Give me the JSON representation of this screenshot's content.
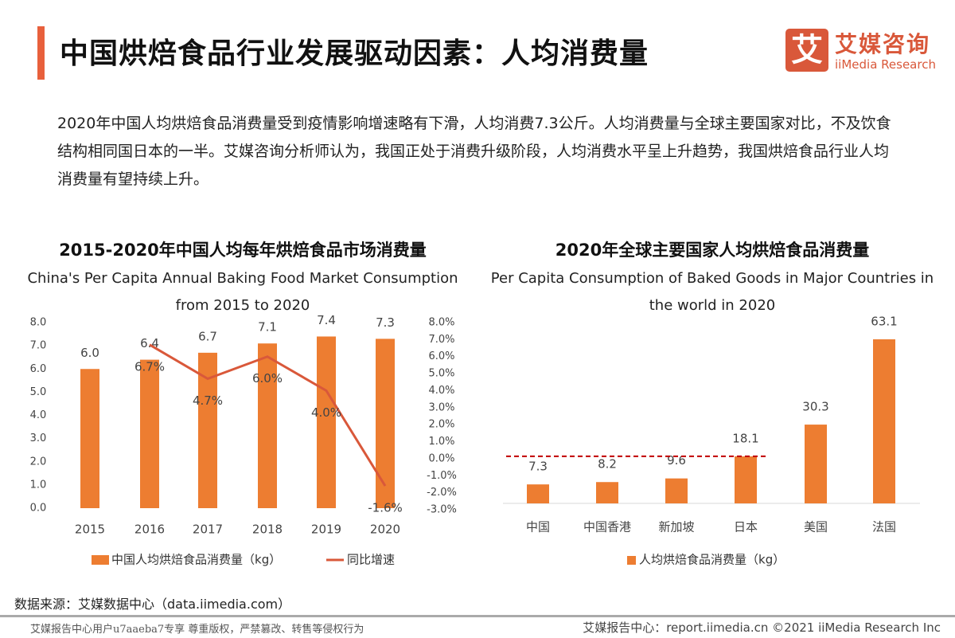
{
  "header": {
    "title": "中国烘焙食品行业发展驱动因素：人均消费量",
    "logo_icon": "艾",
    "logo_cn": "艾媒咨询",
    "logo_en": "iiMedia Research"
  },
  "summary": "2020年中国人均烘焙食品消费量受到疫情影响增速略有下滑，人均消费7.3公斤。人均消费量与全球主要国家对比，不及饮食结构相同国日本的一半。艾媒咨询分析师认为，我国正处于消费升级阶段，人均消费水平呈上升趋势，我国烘焙食品行业人均消费量有望持续上升。",
  "chart_data": [
    {
      "type": "bar+line",
      "title": "2015-2020年中国人均每年烘焙食品市场消费量",
      "subtitle": "China's Per Capita Annual Baking Food Market Consumption from 2015 to 2020",
      "categories": [
        "2015",
        "2016",
        "2017",
        "2018",
        "2019",
        "2020"
      ],
      "series": [
        {
          "name": "中国人均烘焙食品消费量（kg）",
          "type": "bar",
          "axis": "left",
          "values": [
            6.0,
            6.4,
            6.7,
            7.1,
            7.4,
            7.3
          ],
          "labels": [
            "6.0",
            "6.4",
            "6.7",
            "7.1",
            "7.4",
            "7.3"
          ],
          "color": "#ed7d31"
        },
        {
          "name": "同比增速",
          "type": "line",
          "axis": "right",
          "values": [
            null,
            6.7,
            4.7,
            6.0,
            4.0,
            -1.6
          ],
          "labels": [
            "",
            "6.7%",
            "4.7%",
            "6.0%",
            "4.0%",
            "-1.6%"
          ],
          "color": "#d9583a"
        }
      ],
      "ylim_left": [
        0,
        8
      ],
      "yticks_left": [
        "0.0",
        "1.0",
        "2.0",
        "3.0",
        "4.0",
        "5.0",
        "6.0",
        "7.0",
        "8.0"
      ],
      "ylim_right": [
        -3,
        8
      ],
      "yticks_right": [
        "-3.0%",
        "-2.0%",
        "-1.0%",
        "0.0%",
        "1.0%",
        "2.0%",
        "3.0%",
        "4.0%",
        "5.0%",
        "6.0%",
        "7.0%",
        "8.0%"
      ],
      "legend": "bottom",
      "grid": false
    },
    {
      "type": "bar",
      "title": "2020年全球主要国家人均烘焙食品消费量",
      "subtitle": "Per Capita Consumption of Baked Goods in Major Countries in the world in 2020",
      "categories": [
        "中国",
        "中国香港",
        "新加坡",
        "日本",
        "美国",
        "法国"
      ],
      "series": [
        {
          "name": "人均烘焙食品消费量（kg）",
          "values": [
            7.3,
            8.2,
            9.6,
            18.1,
            30.3,
            63.1
          ],
          "labels": [
            "7.3",
            "8.2",
            "9.6",
            "18.1",
            "30.3",
            "63.1"
          ],
          "color": "#ed7d31"
        }
      ],
      "reference_line": {
        "value": 18.1,
        "style": "dashed",
        "color": "#c00000"
      },
      "legend": "bottom",
      "grid": false
    }
  ],
  "footer": {
    "source": "数据来源：艾媒数据中心（data.iimedia.com）",
    "left": "艾媒报告中心用户u7aaeba7专享 尊重版权，严禁篡改、转售等侵权行为",
    "right": "艾媒报告中心：report.iimedia.cn   ©2021  iiMedia Research  Inc"
  }
}
